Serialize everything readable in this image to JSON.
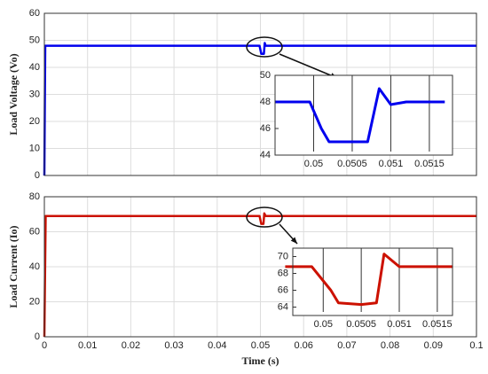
{
  "chart_data": [
    {
      "type": "line",
      "ylabel": "Load Voltage (Vo)",
      "xlim": [
        0,
        0.1
      ],
      "ylim": [
        0,
        60
      ],
      "xticks": [
        0,
        0.01,
        0.02,
        0.03,
        0.04,
        0.05,
        0.06,
        0.07,
        0.08,
        0.09,
        0.1
      ],
      "yticks": [
        0,
        10,
        20,
        30,
        40,
        50,
        60
      ],
      "grid": true,
      "x": [
        0,
        0.0002,
        0.0498,
        0.0502,
        0.0505,
        0.0508,
        0.051,
        0.0512,
        0.1
      ],
      "series": [
        {
          "color": "#0000ee",
          "values": [
            0,
            48,
            48,
            45,
            45,
            45,
            49,
            48,
            48
          ]
        }
      ]
    },
    {
      "type": "line",
      "xlim": [
        0.0495,
        0.0518
      ],
      "ylim": [
        44,
        50
      ],
      "xticks": [
        0.05,
        0.0505,
        0.051,
        0.0515
      ],
      "yticks": [
        44,
        46,
        48,
        50
      ],
      "grid": false,
      "x": [
        0.0495,
        0.04995,
        0.0501,
        0.0502,
        0.0505,
        0.0507,
        0.05085,
        0.051,
        0.0512,
        0.0517
      ],
      "series": [
        {
          "color": "#0000ee",
          "values": [
            48,
            48,
            46,
            45,
            45,
            45,
            49,
            47.8,
            48,
            48
          ]
        }
      ]
    },
    {
      "type": "line",
      "ylabel": "Load Current (Io)",
      "xlabel": "Time (s)",
      "xlim": [
        0,
        0.1
      ],
      "ylim": [
        0,
        80
      ],
      "xticks": [
        0,
        0.01,
        0.02,
        0.03,
        0.04,
        0.05,
        0.06,
        0.07,
        0.08,
        0.09,
        0.1
      ],
      "yticks": [
        0,
        20,
        40,
        60,
        80
      ],
      "grid": true,
      "x": [
        0,
        0.0003,
        0.0498,
        0.0502,
        0.0507,
        0.0509,
        0.0512,
        0.1
      ],
      "series": [
        {
          "color": "#cc1100",
          "values": [
            0,
            69,
            69,
            64.5,
            64.5,
            70.5,
            69,
            69
          ]
        }
      ]
    },
    {
      "type": "line",
      "xlim": [
        0.0496,
        0.0517
      ],
      "ylim": [
        63,
        71
      ],
      "xticks": [
        0.05,
        0.0505,
        0.051,
        0.0515
      ],
      "yticks": [
        64,
        66,
        68,
        70
      ],
      "grid": false,
      "x": [
        0.0495,
        0.04985,
        0.0501,
        0.0502,
        0.0505,
        0.0507,
        0.0508,
        0.051,
        0.0517
      ],
      "series": [
        {
          "color": "#cc1100",
          "values": [
            68.8,
            68.8,
            66,
            64.5,
            64.3,
            64.5,
            70.3,
            68.8,
            68.8
          ]
        }
      ]
    }
  ]
}
